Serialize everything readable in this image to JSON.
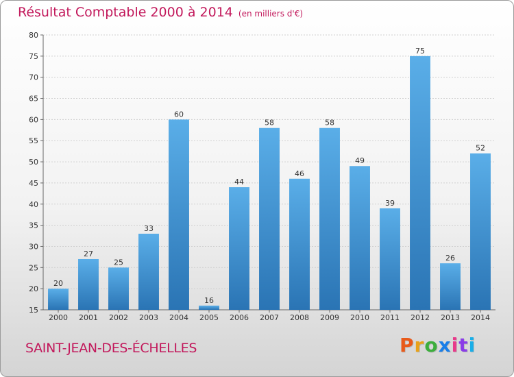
{
  "header": {
    "title": "Résultat Comptable 2000 à 2014",
    "subtitle": "(en milliers d'€)"
  },
  "footer": {
    "commune": "SAINT-JEAN-DES-ÉCHELLES",
    "logo": "Proxiti"
  },
  "colors": {
    "accent": "#c2185b",
    "bar_top": "#5aaee8",
    "bar_bottom": "#2a74b4",
    "logo_letters": [
      "#e85a1a",
      "#e8a21a",
      "#3cae3c",
      "#1a7ee8",
      "#e83a8a",
      "#8a3ce8",
      "#1aaee8"
    ]
  },
  "chart_data": {
    "type": "bar",
    "categories": [
      "2000",
      "2001",
      "2002",
      "2003",
      "2004",
      "2005",
      "2006",
      "2007",
      "2008",
      "2009",
      "2010",
      "2011",
      "2012",
      "2013",
      "2014"
    ],
    "values": [
      20,
      27,
      25,
      33,
      60,
      16,
      44,
      58,
      46,
      58,
      49,
      39,
      75,
      26,
      52
    ],
    "title": "Résultat Comptable 2000 à 2014",
    "ylim": [
      15,
      80
    ],
    "yticks": [
      15,
      20,
      25,
      30,
      35,
      40,
      45,
      50,
      55,
      60,
      65,
      70,
      75,
      80
    ],
    "grid": true,
    "legend": "none"
  }
}
